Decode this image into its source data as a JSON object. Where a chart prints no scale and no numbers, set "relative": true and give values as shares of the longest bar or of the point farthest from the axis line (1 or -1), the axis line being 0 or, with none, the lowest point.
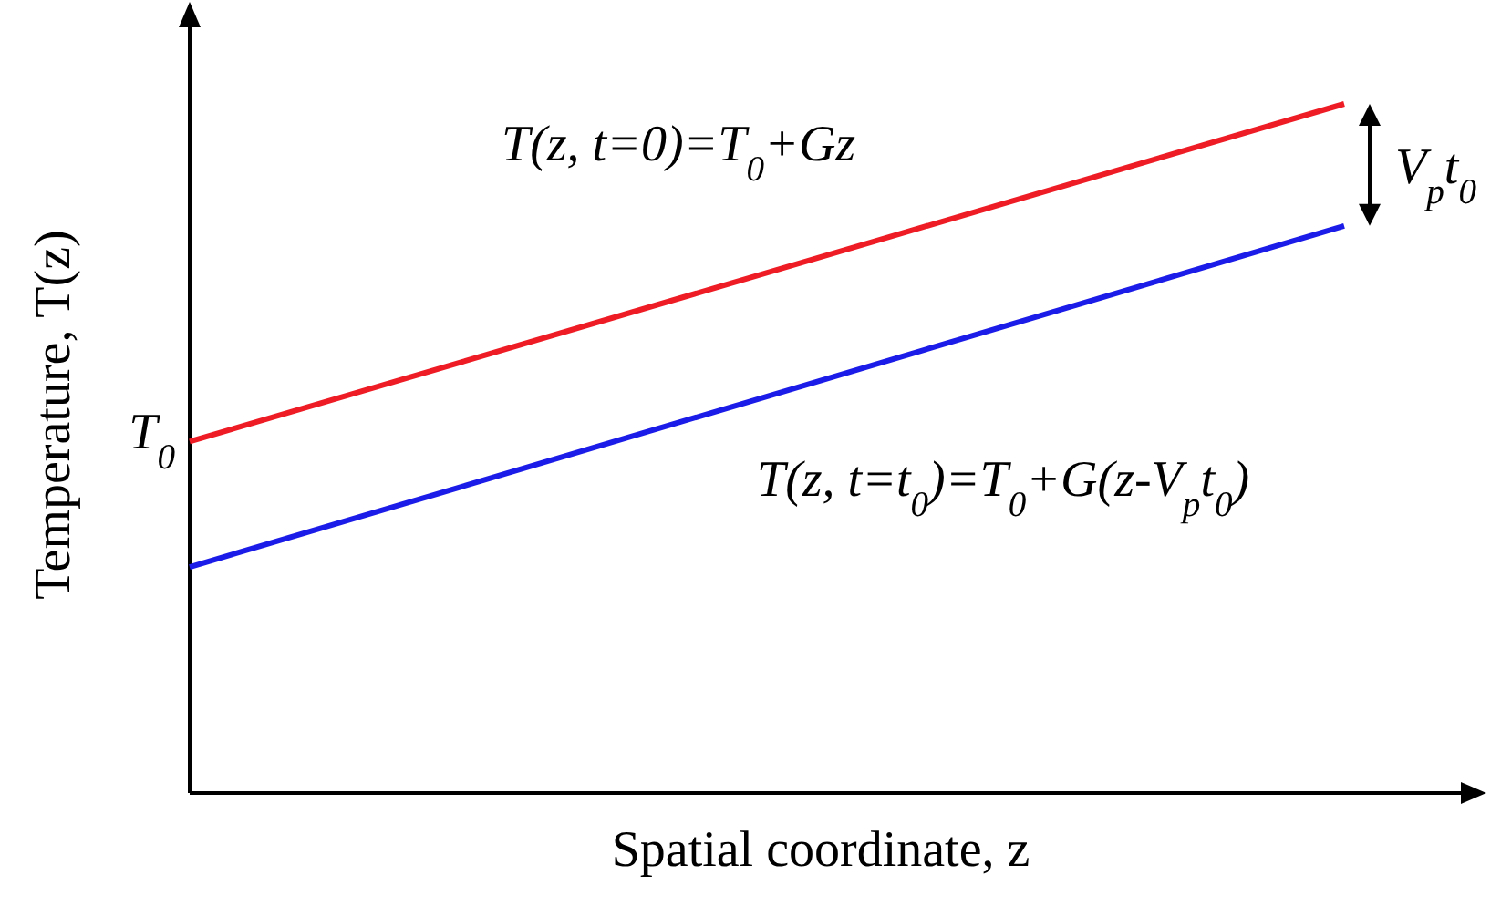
{
  "chart_data": {
    "type": "line",
    "relative": true,
    "xlabel": "Spatial coordinate, z",
    "ylabel": "Temperature, T(z)",
    "categories": [
      null,
      null
    ],
    "marker": "none",
    "line_style": "solid",
    "series": [
      {
        "name": "T(z, t=0)=T$_{0}$+Gz",
        "color": "#ee1c25",
        "values": [
          0.51,
          1
        ]
      },
      {
        "name": "T(z, t=t$_{0}$)=T$_{0}$+G(z-V$_{p}$t$_{0}$)",
        "color": "#1c1ce8",
        "values": [
          0.328,
          0.823
        ]
      }
    ],
    "annotations": [
      "T$_{0}$",
      "V$_{p}$t$_{0}$"
    ]
  }
}
